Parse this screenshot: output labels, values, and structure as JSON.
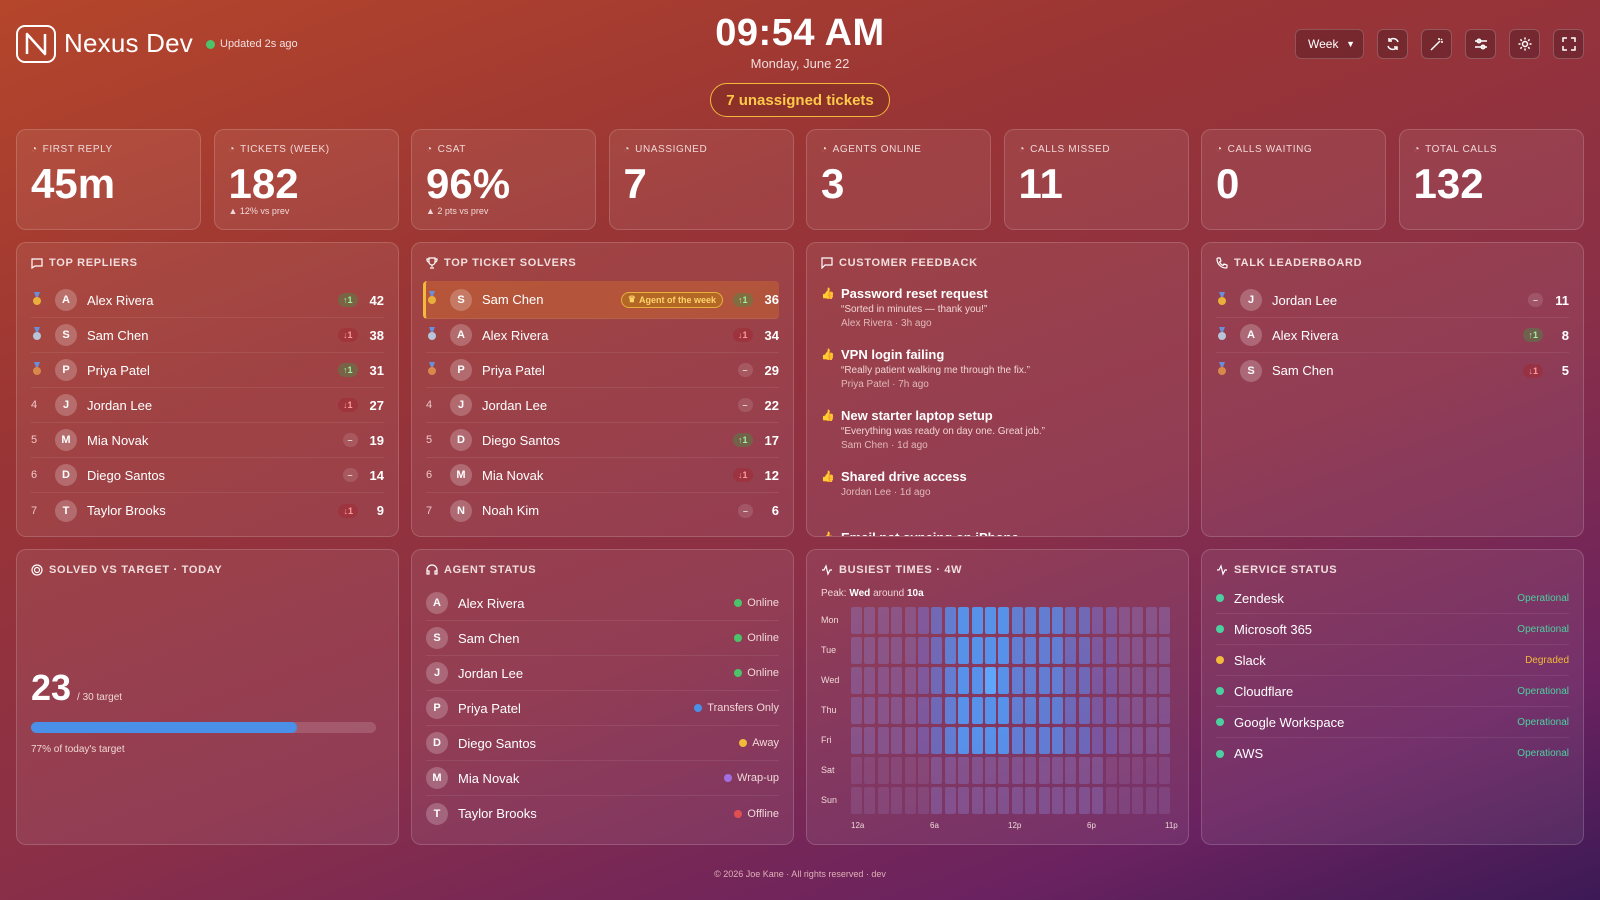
{
  "brand": {
    "name": "Nexus Dev",
    "updated": "Updated 2s ago"
  },
  "clock": {
    "time": "09:54 AM",
    "date": "Monday, June 22"
  },
  "alert": {
    "label": "7 unassigned tickets"
  },
  "controls": {
    "range": "Week"
  },
  "kpis": [
    {
      "label": "FIRST REPLY",
      "value": "45m",
      "sub": "",
      "icon": "clock-icon"
    },
    {
      "label": "TICKETS (WEEK)",
      "value": "182",
      "sub": "▲ 12% vs prev",
      "icon": "ticket-icon"
    },
    {
      "label": "CSAT",
      "value": "96%",
      "sub": "▲ 2 pts vs prev",
      "icon": "star-icon"
    },
    {
      "label": "UNASSIGNED",
      "value": "7",
      "sub": "",
      "icon": "user-x-icon"
    },
    {
      "label": "AGENTS ONLINE",
      "value": "3",
      "sub": "",
      "icon": "users-icon"
    },
    {
      "label": "CALLS MISSED",
      "value": "11",
      "sub": "",
      "icon": "phone-missed-icon"
    },
    {
      "label": "CALLS WAITING",
      "value": "0",
      "sub": "",
      "icon": "phone-waiting-icon"
    },
    {
      "label": "TOTAL CALLS",
      "value": "132",
      "sub": "",
      "icon": "phone-icon"
    }
  ],
  "top_repliers": {
    "title": "TOP REPLIERS",
    "rows": [
      {
        "rank": "",
        "initial": "A",
        "name": "Alex Rivera",
        "delta": "↑1",
        "dir": "u",
        "score": "42"
      },
      {
        "rank": "",
        "initial": "S",
        "name": "Sam Chen",
        "delta": "↓1",
        "dir": "d",
        "score": "38"
      },
      {
        "rank": "",
        "initial": "P",
        "name": "Priya Patel",
        "delta": "↑1",
        "dir": "u",
        "score": "31"
      },
      {
        "rank": "4",
        "initial": "J",
        "name": "Jordan Lee",
        "delta": "↓1",
        "dir": "d",
        "score": "27"
      },
      {
        "rank": "5",
        "initial": "M",
        "name": "Mia Novak",
        "delta": "–",
        "dir": "s",
        "score": "19"
      },
      {
        "rank": "6",
        "initial": "D",
        "name": "Diego Santos",
        "delta": "–",
        "dir": "s",
        "score": "14"
      },
      {
        "rank": "7",
        "initial": "T",
        "name": "Taylor Brooks",
        "delta": "↓1",
        "dir": "d",
        "score": "9"
      }
    ]
  },
  "top_solvers": {
    "title": "TOP TICKET SOLVERS",
    "badge": "Agent of the week",
    "rows": [
      {
        "rank": "",
        "initial": "S",
        "name": "Sam Chen",
        "delta": "↑1",
        "dir": "u",
        "score": "36"
      },
      {
        "rank": "",
        "initial": "A",
        "name": "Alex Rivera",
        "delta": "↓1",
        "dir": "d",
        "score": "34"
      },
      {
        "rank": "",
        "initial": "P",
        "name": "Priya Patel",
        "delta": "–",
        "dir": "s",
        "score": "29"
      },
      {
        "rank": "4",
        "initial": "J",
        "name": "Jordan Lee",
        "delta": "–",
        "dir": "s",
        "score": "22"
      },
      {
        "rank": "5",
        "initial": "D",
        "name": "Diego Santos",
        "delta": "↑1",
        "dir": "u",
        "score": "17"
      },
      {
        "rank": "6",
        "initial": "M",
        "name": "Mia Novak",
        "delta": "↓1",
        "dir": "d",
        "score": "12"
      },
      {
        "rank": "7",
        "initial": "N",
        "name": "Noah Kim",
        "delta": "–",
        "dir": "s",
        "score": "6"
      }
    ]
  },
  "feedback": {
    "title": "CUSTOMER FEEDBACK",
    "items": [
      {
        "title": "Password reset request",
        "quote": "“Sorted in minutes — thank you!”",
        "meta": "Alex Rivera · 3h ago"
      },
      {
        "title": "VPN login failing",
        "quote": "“Really patient walking me through the fix.”",
        "meta": "Priya Patel · 7h ago"
      },
      {
        "title": "New starter laptop setup",
        "quote": "“Everything was ready on day one. Great job.”",
        "meta": "Sam Chen · 1d ago"
      },
      {
        "title": "Shared drive access",
        "quote": "",
        "meta": "Jordan Lee · 1d ago"
      },
      {
        "title": "Email not syncing on iPhone",
        "quote": "",
        "meta": ""
      }
    ]
  },
  "talk": {
    "title": "TALK LEADERBOARD",
    "rows": [
      {
        "initial": "J",
        "name": "Jordan Lee",
        "delta": "–",
        "dir": "s",
        "score": "11"
      },
      {
        "initial": "A",
        "name": "Alex Rivera",
        "delta": "↑1",
        "dir": "u",
        "score": "8"
      },
      {
        "initial": "S",
        "name": "Sam Chen",
        "delta": "↓1",
        "dir": "d",
        "score": "5"
      }
    ]
  },
  "target": {
    "title": "SOLVED VS TARGET · TODAY",
    "value": "23",
    "target_label": "/ 30 target",
    "progress": 0.77,
    "caption": "77% of today's target"
  },
  "agents": {
    "title": "AGENT STATUS",
    "rows": [
      {
        "initial": "A",
        "name": "Alex Rivera",
        "status": "Online",
        "color": "#4cc36a"
      },
      {
        "initial": "S",
        "name": "Sam Chen",
        "status": "Online",
        "color": "#4cc36a"
      },
      {
        "initial": "J",
        "name": "Jordan Lee",
        "status": "Online",
        "color": "#4cc36a"
      },
      {
        "initial": "P",
        "name": "Priya Patel",
        "status": "Transfers Only",
        "color": "#4a8fe8"
      },
      {
        "initial": "D",
        "name": "Diego Santos",
        "status": "Away",
        "color": "#f2b93b"
      },
      {
        "initial": "M",
        "name": "Mia Novak",
        "status": "Wrap-up",
        "color": "#a070e0"
      },
      {
        "initial": "T",
        "name": "Taylor Brooks",
        "status": "Offline",
        "color": "#e05050"
      }
    ]
  },
  "busiest": {
    "title": "BUSIEST TIMES · 4W",
    "peak_prefix": "Peak: ",
    "peak_day": "Wed",
    "peak_mid": " around ",
    "peak_time": "10a",
    "days": [
      "Mon",
      "Tue",
      "Wed",
      "Thu",
      "Fri",
      "Sat",
      "Sun"
    ],
    "xticks": [
      "12a",
      "6a",
      "12p",
      "6p",
      "11p"
    ]
  },
  "services": {
    "title": "SERVICE STATUS",
    "rows": [
      {
        "name": "Zendesk",
        "status": "Operational",
        "color": "#4cd0a0"
      },
      {
        "name": "Microsoft 365",
        "status": "Operational",
        "color": "#4cd0a0"
      },
      {
        "name": "Slack",
        "status": "Degraded",
        "color": "#f2b93b"
      },
      {
        "name": "Cloudflare",
        "status": "Operational",
        "color": "#4cd0a0"
      },
      {
        "name": "Google Workspace",
        "status": "Operational",
        "color": "#4cd0a0"
      },
      {
        "name": "AWS",
        "status": "Operational",
        "color": "#4cd0a0"
      }
    ]
  },
  "footer": "© 2026 Joe Kane · All rights reserved · dev"
}
